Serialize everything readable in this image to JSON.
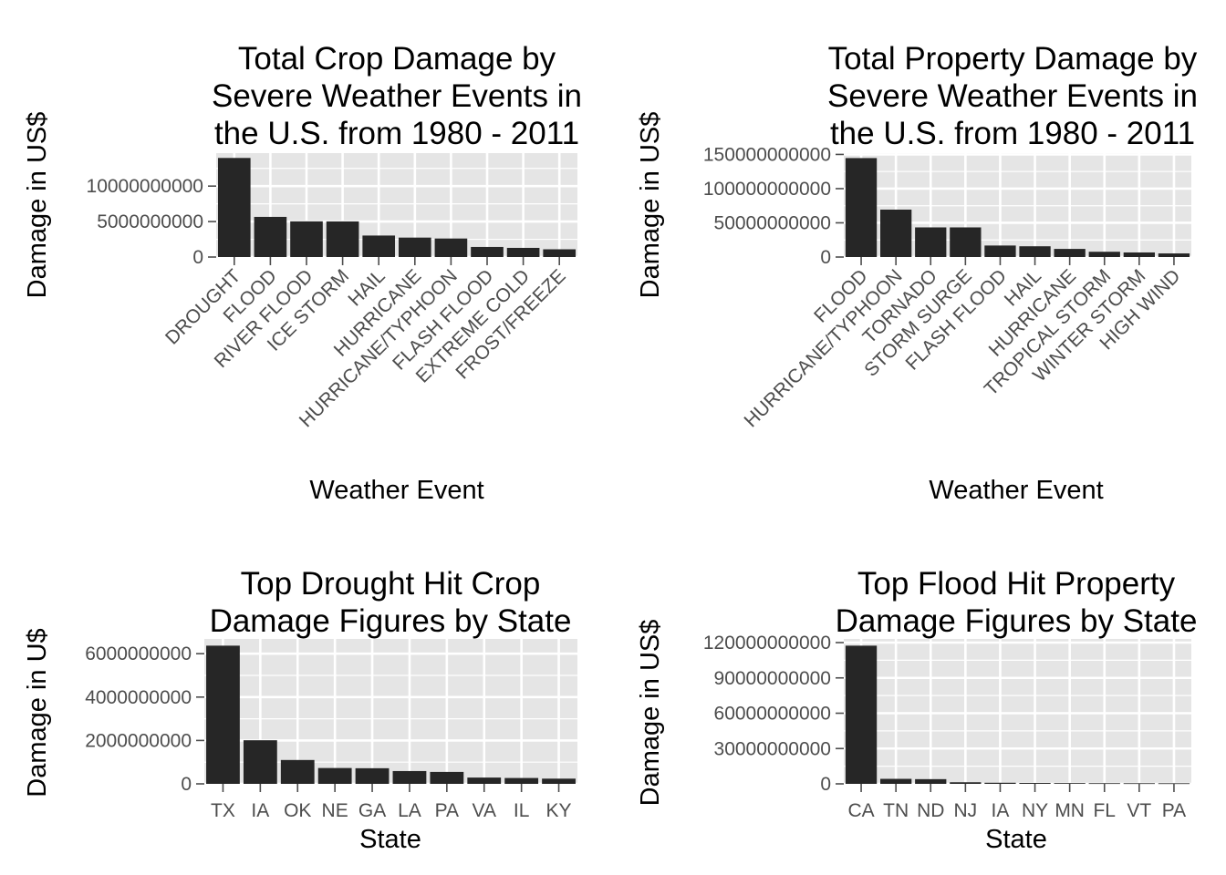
{
  "colors": {
    "panel_background": "#e5e5e5",
    "grid_line": "#ffffff",
    "bar_fill": "#262626",
    "tick_text": "#4d4d4d",
    "tick_mark": "#4d4d4d",
    "title_text": "#000000"
  },
  "chart_data": [
    {
      "type": "bar",
      "title": [
        "Total Crop Damage by",
        "Severe Weather Events in",
        "the U.S.  from 1980 - 2011"
      ],
      "xlabel": "Weather Event",
      "ylabel": "Damage in US$",
      "categories": [
        "DROUGHT",
        "FLOOD",
        "RIVER FLOOD",
        "ICE STORM",
        "HAIL",
        "HURRICANE",
        "HURRICANE/TYPHOON",
        "FLASH FLOOD",
        "EXTREME COLD",
        "FROST/FREEZE"
      ],
      "values": [
        13970000000,
        5660000000,
        5030000000,
        5020000000,
        3030000000,
        2740000000,
        2610000000,
        1420000000,
        1290000000,
        1090000000
      ],
      "yticks": [
        0,
        5000000000,
        10000000000
      ],
      "ytick_labels": [
        "0",
        "5000000000",
        "10000000000"
      ],
      "ylim": [
        0,
        14650000000
      ],
      "x_tick_rotation": -45,
      "grid": true,
      "legend": "none"
    },
    {
      "type": "bar",
      "title": [
        "Total Property Damage by",
        "Severe Weather Events in",
        "the  U.S. from 1980 - 2011"
      ],
      "xlabel": "Weather Event",
      "ylabel": "Damage in US$",
      "categories": [
        "FLOOD",
        "HURRICANE/TYPHOON",
        "TORNADO",
        "STORM SURGE",
        "FLASH FLOOD",
        "HAIL",
        "HURRICANE",
        "TROPICAL STORM",
        "WINTER STORM",
        "HIGH WIND"
      ],
      "values": [
        144660000000,
        69310000000,
        43320000000,
        43320000000,
        16820000000,
        15730000000,
        11870000000,
        7700000000,
        6690000000,
        5270000000
      ],
      "yticks": [
        0,
        50000000000,
        100000000000,
        150000000000
      ],
      "ytick_labels": [
        "0",
        "50000000000",
        "100000000000",
        "150000000000"
      ],
      "ylim": [
        0,
        151900000000
      ],
      "x_tick_rotation": -45,
      "grid": true,
      "legend": "none"
    },
    {
      "type": "bar",
      "title": [
        "Top Drought Hit Crop",
        "Damage Figures by State"
      ],
      "xlabel": "State",
      "ylabel": "Damage in U$",
      "categories": [
        "TX",
        "IA",
        "OK",
        "NE",
        "GA",
        "LA",
        "PA",
        "VA",
        "IL",
        "KY"
      ],
      "values": [
        6370000000,
        2010000000,
        1100000000,
        730000000,
        720000000,
        590000000,
        550000000,
        290000000,
        270000000,
        240000000
      ],
      "yticks": [
        0,
        2000000000,
        4000000000,
        6000000000
      ],
      "ytick_labels": [
        "0",
        "2000000000",
        "4000000000",
        "6000000000"
      ],
      "ylim": [
        0,
        6680000000
      ],
      "x_tick_rotation": 0,
      "grid": true,
      "legend": "none"
    },
    {
      "type": "bar",
      "title": [
        "Top Flood Hit Property",
        "Damage Figures by State"
      ],
      "xlabel": "State",
      "ylabel": "Damage in US$",
      "categories": [
        "CA",
        "TN",
        "ND",
        "NJ",
        "IA",
        "NY",
        "MN",
        "FL",
        "VT",
        "PA"
      ],
      "values": [
        117380000000,
        4250000000,
        3990000000,
        1350000000,
        950000000,
        750000000,
        640000000,
        560000000,
        530000000,
        500000000
      ],
      "yticks": [
        0,
        30000000000,
        60000000000,
        90000000000,
        120000000000
      ],
      "ytick_labels": [
        "0",
        "30000000000",
        "60000000000",
        "90000000000",
        "120000000000"
      ],
      "ylim": [
        0,
        123100000000
      ],
      "x_tick_rotation": 0,
      "grid": true,
      "legend": "none"
    }
  ]
}
